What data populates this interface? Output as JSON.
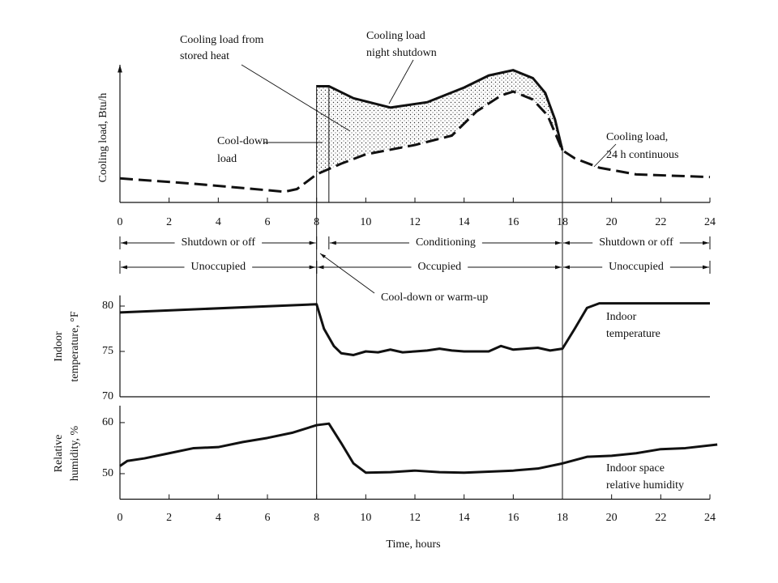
{
  "chart_data": [
    {
      "type": "line",
      "ylabel": "Cooling load, Btu/h",
      "xlim": [
        0,
        24
      ],
      "ylim": [
        0,
        100
      ],
      "xticks": [
        0,
        2,
        4,
        6,
        8,
        10,
        12,
        14,
        16,
        18,
        20,
        22,
        24
      ],
      "yticks": [],
      "series": [
        {
          "name": "Cooling load, 24 h continuous",
          "color": "#111111",
          "linestyle": "dashed",
          "x": [
            0,
            3,
            6.7,
            7.2,
            8,
            9,
            10,
            12,
            13.5,
            14.5,
            15.5,
            16,
            16.8,
            17.4,
            18,
            18.5,
            19.5,
            21,
            24
          ],
          "values": [
            18,
            14,
            8,
            10,
            21,
            29,
            36,
            43,
            50,
            68,
            80,
            83,
            77,
            65,
            39,
            33,
            26,
            21,
            19
          ]
        },
        {
          "name": "Cooling load night shutdown",
          "color": "#111111",
          "linestyle": "solid",
          "x": [
            8,
            8.5,
            9.5,
            11,
            12.5,
            14,
            15,
            16,
            16.8,
            17.3,
            17.7,
            18
          ],
          "values": [
            87,
            87,
            78,
            71,
            75,
            86,
            95,
            99,
            93,
            82,
            62,
            39
          ]
        }
      ],
      "annotations": [
        {
          "lines": [
            "Cooling load from",
            "stored heat"
          ]
        },
        {
          "lines": [
            "Cooling load",
            "night shutdown"
          ]
        },
        {
          "lines": [
            "Cool-down",
            "load"
          ]
        },
        {
          "lines": [
            "Cooling load,",
            "24 h continuous"
          ]
        }
      ],
      "periods": [
        [
          {
            "label": "Shutdown or off",
            "start": 0,
            "end": 8
          },
          {
            "label": "Conditioning",
            "start": 8.5,
            "end": 18
          },
          {
            "label": "Shutdown or off",
            "start": 18,
            "end": 24
          }
        ],
        [
          {
            "label": "Unoccupied",
            "start": 0,
            "end": 8
          },
          {
            "label": "Occupied",
            "start": 8,
            "end": 18
          },
          {
            "label": "Unoccupied",
            "start": 18,
            "end": 24
          }
        ]
      ],
      "callout": "Cool-down or warm-up"
    },
    {
      "type": "line",
      "ylabel": [
        "Indoor",
        "temperature, °F"
      ],
      "xlim": [
        0,
        24
      ],
      "ylim": [
        70,
        81
      ],
      "yticks": [
        70,
        75,
        80
      ],
      "series": [
        {
          "name": [
            "Indoor",
            "temperature"
          ],
          "color": "#111111",
          "linestyle": "solid",
          "x": [
            0,
            8,
            8.3,
            8.7,
            9,
            9.5,
            10,
            10.5,
            11,
            11.5,
            12,
            12.5,
            13,
            13.5,
            14,
            14.5,
            15,
            15.5,
            16,
            16.5,
            17,
            17.5,
            18,
            18.5,
            19,
            19.5,
            20,
            24
          ],
          "values": [
            79.3,
            80.2,
            77.5,
            75.6,
            74.8,
            74.6,
            75,
            74.9,
            75.2,
            74.9,
            75,
            75.1,
            75.3,
            75.1,
            75,
            75,
            75,
            75.6,
            75.2,
            75.3,
            75.4,
            75.1,
            75.3,
            77.5,
            79.8,
            80.3,
            80.3,
            80.3
          ]
        }
      ]
    },
    {
      "type": "line",
      "ylabel": [
        "Relative",
        "humidity, %"
      ],
      "xlabel": "Time, hours",
      "xlim": [
        0,
        24
      ],
      "ylim": [
        45,
        63
      ],
      "xticks": [
        0,
        2,
        4,
        6,
        8,
        10,
        12,
        14,
        16,
        18,
        20,
        22,
        24
      ],
      "yticks": [
        50,
        60
      ],
      "series": [
        {
          "name": [
            "Indoor space",
            "relative humidity"
          ],
          "color": "#111111",
          "linestyle": "solid",
          "x": [
            0,
            0.3,
            1,
            2,
            3,
            4,
            5,
            6,
            7,
            8,
            8.5,
            9,
            9.5,
            10,
            11,
            12,
            13,
            14,
            15,
            16,
            17,
            18,
            19,
            20,
            21,
            22,
            23,
            24.3
          ],
          "values": [
            51.5,
            52.5,
            53,
            54,
            55,
            55.2,
            56.2,
            57,
            58,
            59.5,
            59.8,
            56,
            52,
            50.2,
            50.3,
            50.6,
            50.3,
            50.2,
            50.4,
            50.6,
            51,
            52,
            53.3,
            53.5,
            54,
            54.8,
            55,
            55.7
          ]
        }
      ]
    }
  ]
}
